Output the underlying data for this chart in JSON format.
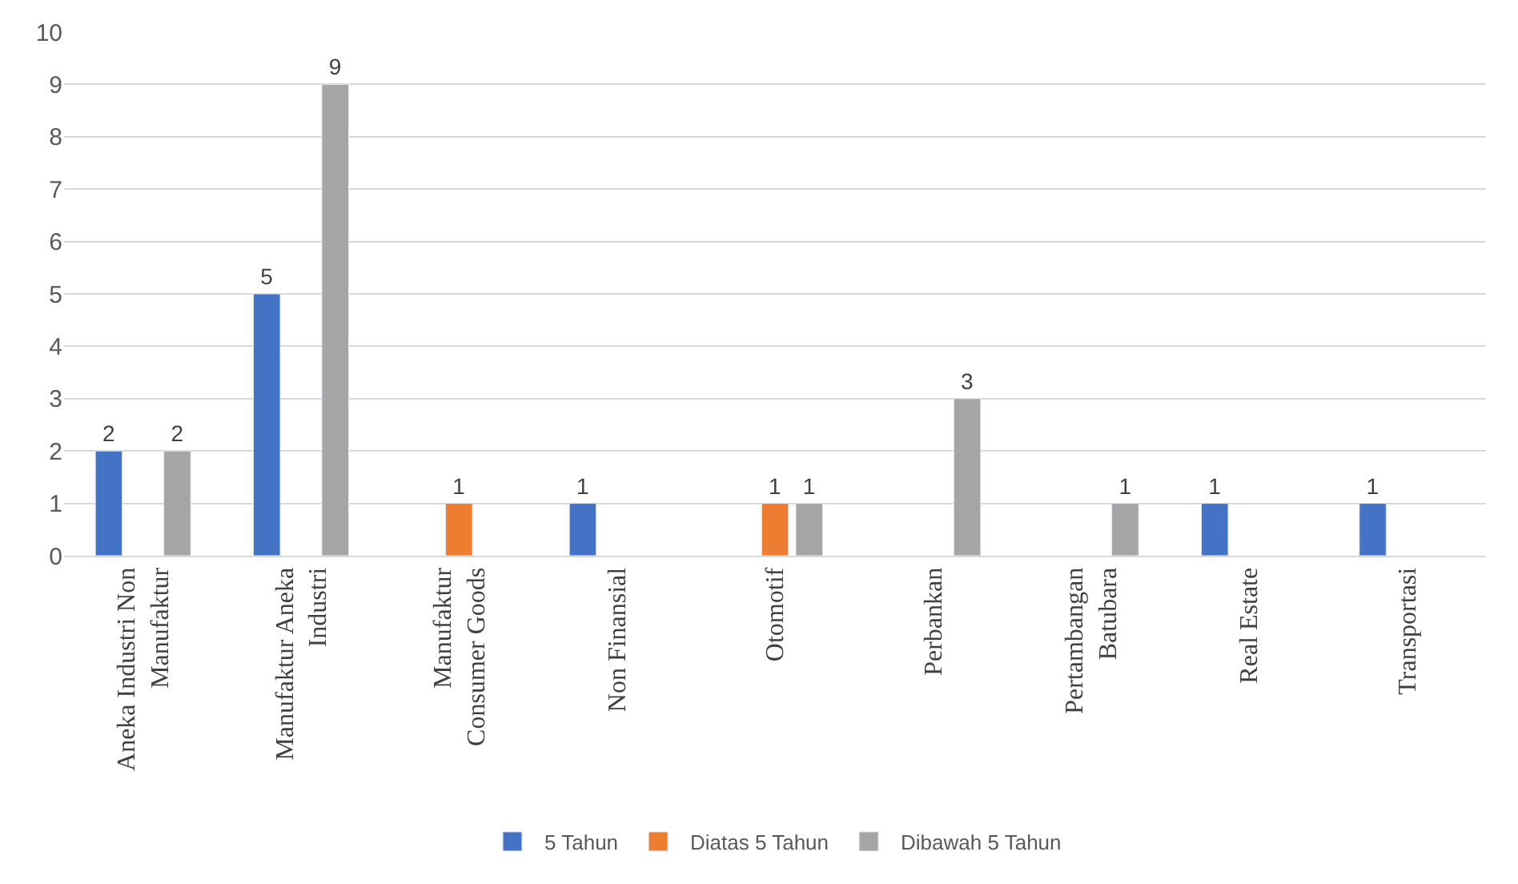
{
  "chart_data": {
    "type": "bar",
    "categories": [
      "Aneka Industri Non Manufaktur",
      "Manufaktur Aneka Industri",
      "Manufaktur Consumer Goods",
      "Non Finansial",
      "Otomotif",
      "Perbankan",
      "Pertambangan Batubara",
      "Real Estate",
      "Transportasi"
    ],
    "series": [
      {
        "name": "5 Tahun",
        "color": "#4472c4",
        "values": [
          2,
          5,
          null,
          1,
          null,
          null,
          null,
          1,
          1
        ]
      },
      {
        "name": "Diatas 5 Tahun",
        "color": "#ed7d31",
        "values": [
          null,
          null,
          1,
          null,
          1,
          null,
          null,
          null,
          null
        ]
      },
      {
        "name": "Dibawah 5 Tahun",
        "color": "#a5a5a5",
        "values": [
          2,
          9,
          null,
          null,
          1,
          3,
          1,
          null,
          null
        ]
      }
    ],
    "ylim": [
      0,
      10
    ],
    "yticks": [
      0,
      1,
      2,
      3,
      4,
      5,
      6,
      7,
      8,
      9,
      10
    ],
    "grid": "y",
    "legend": "bottom",
    "data_labels": true
  }
}
